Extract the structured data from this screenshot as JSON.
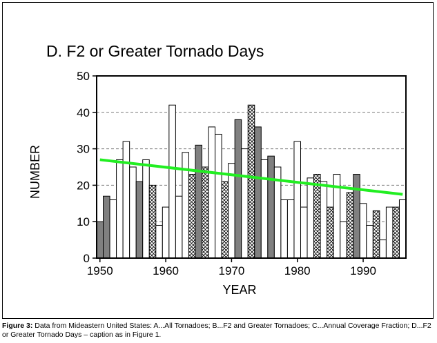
{
  "caption": {
    "label": "Figure 3:",
    "text": " Data from Mideastern United States: A...All Tornadoes; B...F2 and Greater Tornadoes; C...Annual Coverage Fraction; D...F2 or Greater Tornado Days – caption as in Figure 1."
  },
  "chart_data": {
    "type": "bar",
    "title": "D. F2 or Greater Tornado Days",
    "xlabel": "YEAR",
    "ylabel": "NUMBER",
    "xlim": [
      1949.5,
      1996.5
    ],
    "ylim": [
      0,
      50
    ],
    "x_ticks": [
      1950,
      1960,
      1970,
      1980,
      1990
    ],
    "y_ticks": [
      0,
      10,
      20,
      30,
      40,
      50
    ],
    "grid": "horizontal dashed",
    "styles": {
      "open": "#ffffff",
      "gray": "#808080",
      "hatched": "cross-hatch"
    },
    "trend_color": "#22ee22",
    "x": [
      1950,
      1951,
      1952,
      1953,
      1954,
      1955,
      1956,
      1957,
      1958,
      1959,
      1960,
      1961,
      1962,
      1963,
      1964,
      1965,
      1966,
      1967,
      1968,
      1969,
      1970,
      1971,
      1972,
      1973,
      1974,
      1975,
      1976,
      1977,
      1978,
      1979,
      1980,
      1981,
      1982,
      1983,
      1984,
      1985,
      1986,
      1987,
      1988,
      1989,
      1990,
      1991,
      1992,
      1993,
      1994,
      1995,
      1996
    ],
    "values": [
      10,
      17,
      16,
      27,
      32,
      25,
      21,
      27,
      20,
      9,
      14,
      42,
      17,
      29,
      23,
      31,
      25,
      36,
      34,
      21,
      26,
      38,
      30,
      42,
      36,
      27,
      28,
      25,
      16,
      16,
      32,
      14,
      22,
      23,
      21,
      14,
      23,
      10,
      18,
      23,
      15,
      9,
      13,
      5,
      14,
      14,
      16
    ],
    "style": [
      "gray",
      "gray",
      "open",
      "open",
      "open",
      "open",
      "gray",
      "open",
      "hatched",
      "open",
      "open",
      "open",
      "open",
      "open",
      "hatched",
      "gray",
      "hatched",
      "open",
      "open",
      "hatched",
      "open",
      "gray",
      "open",
      "hatched",
      "gray",
      "open",
      "gray",
      "open",
      "open",
      "open",
      "open",
      "open",
      "open",
      "hatched",
      "open",
      "hatched",
      "open",
      "open",
      "hatched",
      "gray",
      "open",
      "open",
      "hatched",
      "open",
      "open",
      "hatched",
      "open"
    ],
    "trend": {
      "x": [
        1950,
        1996
      ],
      "y": [
        27,
        17.5
      ]
    }
  }
}
